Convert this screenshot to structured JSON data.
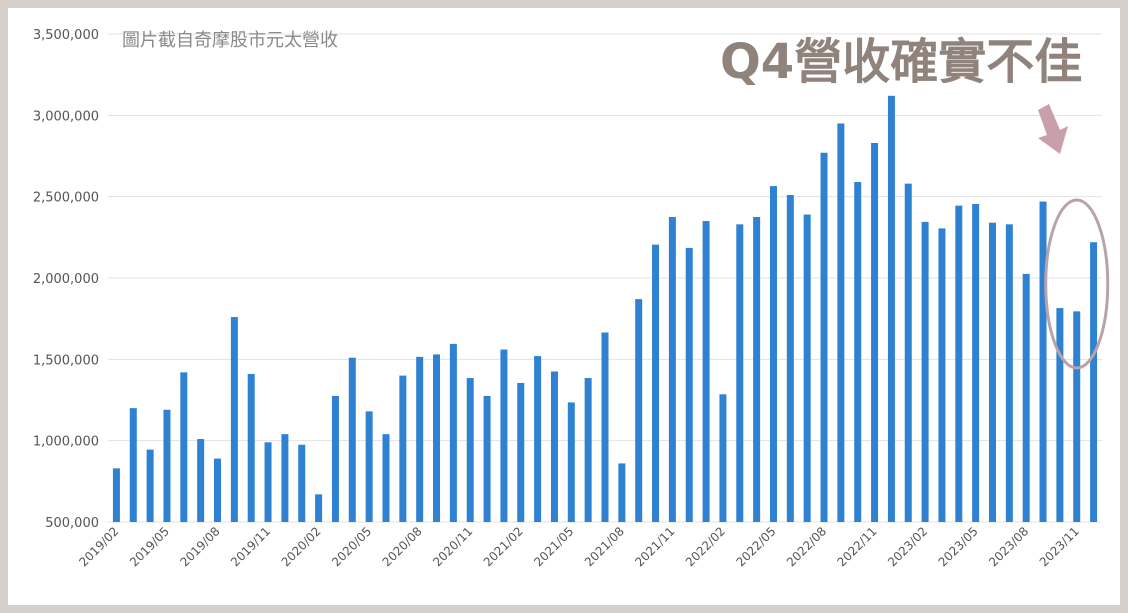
{
  "chart_data": {
    "type": "bar",
    "credit_text": "圖片截自奇摩股市元太營收",
    "annotation": "Q4營收確實不佳",
    "title": "",
    "xlabel": "",
    "ylabel": "",
    "ylim": [
      500000,
      3500000
    ],
    "yticks": [
      "500,000",
      "1,000,000",
      "1,500,000",
      "2,000,000",
      "2,500,000",
      "3,000,000",
      "3,500,000"
    ],
    "ytick_values": [
      500000,
      1000000,
      1500000,
      2000000,
      2500000,
      3000000,
      3500000
    ],
    "xtick_labels": [
      "2019/02",
      "2019/05",
      "2019/08",
      "2019/11",
      "2020/02",
      "2020/05",
      "2020/08",
      "2020/11",
      "2021/02",
      "2021/05",
      "2021/08",
      "2021/11",
      "2022/02",
      "2022/05",
      "2022/08",
      "2022/11",
      "2023/02",
      "2023/05",
      "2023/08",
      "2023/11"
    ],
    "categories": [
      "2019/02",
      "2019/03",
      "2019/04",
      "2019/05",
      "2019/06",
      "2019/07",
      "2019/08",
      "2019/09",
      "2019/10",
      "2019/11",
      "2019/12",
      "2020/01",
      "2020/02",
      "2020/03",
      "2020/04",
      "2020/05",
      "2020/06",
      "2020/07",
      "2020/08",
      "2020/09",
      "2020/10",
      "2020/11",
      "2020/12",
      "2021/01",
      "2021/02",
      "2021/03",
      "2021/04",
      "2021/05",
      "2021/06",
      "2021/07",
      "2021/08",
      "2021/09",
      "2021/10",
      "2021/11",
      "2021/12",
      "2022/01",
      "2022/02",
      "2022/03",
      "2022/04",
      "2022/05",
      "2022/06",
      "2022/07",
      "2022/08",
      "2022/09",
      "2022/10",
      "2022/11",
      "2022/12",
      "2023/01",
      "2023/02",
      "2023/03",
      "2023/04",
      "2023/05",
      "2023/06",
      "2023/07",
      "2023/08",
      "2023/09",
      "2023/10",
      "2023/11",
      "2023/12"
    ],
    "values": [
      830000,
      1200000,
      945000,
      1190000,
      1420000,
      1010000,
      890000,
      1760000,
      1410000,
      990000,
      1040000,
      975000,
      670000,
      1275000,
      1510000,
      1180000,
      1040000,
      1400000,
      1515000,
      1530000,
      1595000,
      1385000,
      1275000,
      1560000,
      1355000,
      1520000,
      1425000,
      1235000,
      1385000,
      1665000,
      860000,
      1870000,
      2205000,
      2375000,
      2185000,
      2350000,
      1285000,
      2330000,
      2375000,
      2565000,
      2510000,
      2390000,
      2770000,
      2950000,
      2590000,
      2830000,
      3120000,
      2580000,
      2345000,
      2305000,
      2445000,
      2455000,
      2340000,
      2330000,
      2025000,
      2470000,
      1815000,
      1795000,
      2220000
    ],
    "bar_color": "#2f82d1",
    "grid": true,
    "highlight_color": "#b9a3a8",
    "arrow_color": "#c7a0a9",
    "headline_color": "#8f837c"
  }
}
